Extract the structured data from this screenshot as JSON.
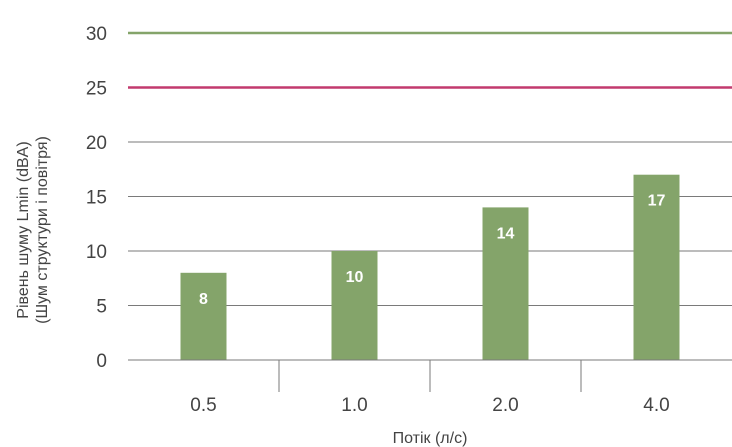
{
  "chart_data": {
    "type": "bar",
    "categories": [
      "0.5",
      "1.0",
      "2.0",
      "4.0"
    ],
    "values": [
      8,
      10,
      14,
      17
    ],
    "data_labels": [
      "8",
      "10",
      "14",
      "17"
    ],
    "xlabel": "Потік (л/с)",
    "ylabel_line1": "Рівень шуму Lmin  (dBA)",
    "ylabel_line2": "(Шум структури і повітря)",
    "ylim": [
      0,
      30
    ],
    "yticks": [
      0,
      5,
      10,
      15,
      20,
      25,
      30
    ],
    "grid": true,
    "bar_color": "#84a46a",
    "reference_lines": [
      {
        "value": 30,
        "color": "#84a46a"
      },
      {
        "value": 25,
        "color": "#c23a6e"
      }
    ]
  }
}
